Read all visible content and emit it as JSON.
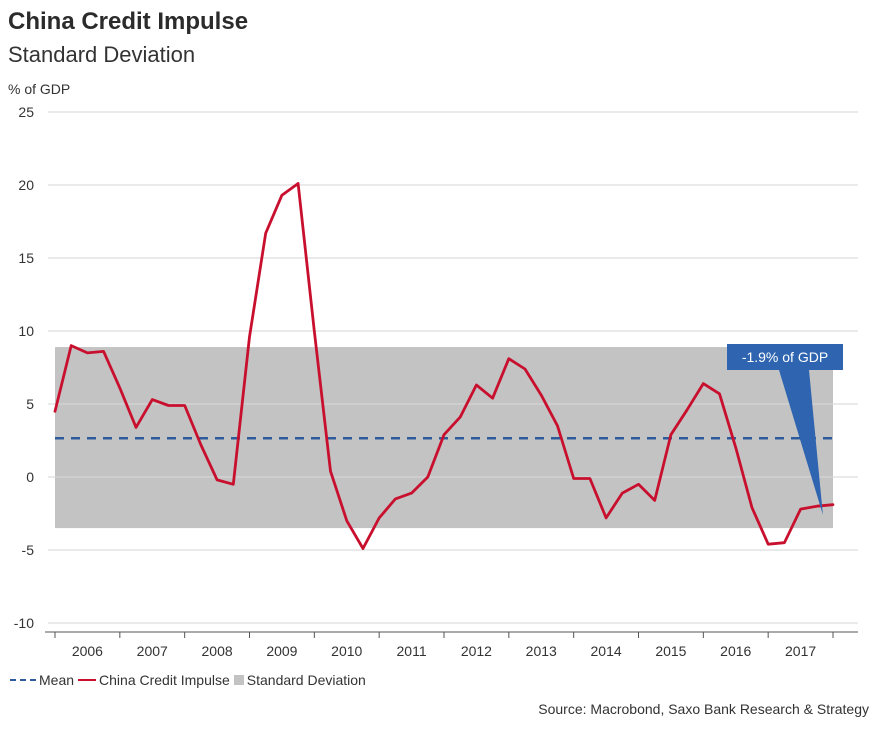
{
  "title": "China Credit Impulse",
  "subtitle": "Standard Deviation",
  "source": "Source: Macrobond, Saxo Bank Research & Strategy",
  "legend": {
    "mean": "Mean",
    "impulse": "China Credit Impulse",
    "band": "Standard Deviation"
  },
  "colors": {
    "impulse": "#c8102e",
    "mean": "#2e5b9c",
    "band": "#c3c3c3",
    "callout": "#2e64b0"
  },
  "chart_data": {
    "type": "line",
    "ylabel": "% of GDP",
    "ylim": [
      -10,
      25
    ],
    "yticks": [
      -10,
      -5,
      0,
      5,
      10,
      15,
      20,
      25
    ],
    "xlim": [
      2005.875,
      2017.875
    ],
    "x_tick_labels": [
      "2006",
      "2007",
      "2008",
      "2009",
      "2010",
      "2011",
      "2012",
      "2013",
      "2014",
      "2015",
      "2016",
      "2017"
    ],
    "grid": "horizontal",
    "legend_position": "bottom",
    "series": [
      {
        "name": "China Credit Impulse",
        "x": [
          2005.875,
          2006.125,
          2006.375,
          2006.625,
          2006.875,
          2007.125,
          2007.375,
          2007.625,
          2007.875,
          2008.125,
          2008.375,
          2008.625,
          2008.875,
          2009.125,
          2009.375,
          2009.625,
          2009.875,
          2010.125,
          2010.375,
          2010.625,
          2010.875,
          2011.125,
          2011.375,
          2011.625,
          2011.875,
          2012.125,
          2012.375,
          2012.625,
          2012.875,
          2013.125,
          2013.375,
          2013.625,
          2013.875,
          2014.125,
          2014.375,
          2014.625,
          2014.875,
          2015.125,
          2015.375,
          2015.625,
          2015.875,
          2016.125,
          2016.375,
          2016.625,
          2016.875,
          2017.125,
          2017.375,
          2017.625,
          2017.875
        ],
        "values": [
          4.5,
          9.0,
          8.5,
          8.6,
          6.1,
          3.4,
          5.3,
          4.9,
          4.9,
          2.2,
          -0.2,
          -0.5,
          9.6,
          16.7,
          19.3,
          20.1,
          10.0,
          0.4,
          -3.0,
          -4.9,
          -2.8,
          -1.5,
          -1.1,
          0.0,
          2.9,
          4.1,
          6.3,
          5.4,
          8.1,
          7.4,
          5.6,
          3.5,
          -0.1,
          -0.1,
          -2.8,
          -1.1,
          -0.5,
          -1.6,
          2.9,
          4.6,
          6.4,
          5.7,
          2.0,
          -2.1,
          -4.6,
          -4.5,
          -2.2,
          -2.0,
          -1.9
        ]
      },
      {
        "name": "Mean",
        "value": 2.65
      }
    ],
    "band": {
      "name": "Standard Deviation",
      "low": -3.5,
      "high": 8.9
    },
    "annotations": [
      {
        "text": "-1.9% of GDP",
        "x": 2017.75,
        "y": -1.9
      }
    ]
  }
}
